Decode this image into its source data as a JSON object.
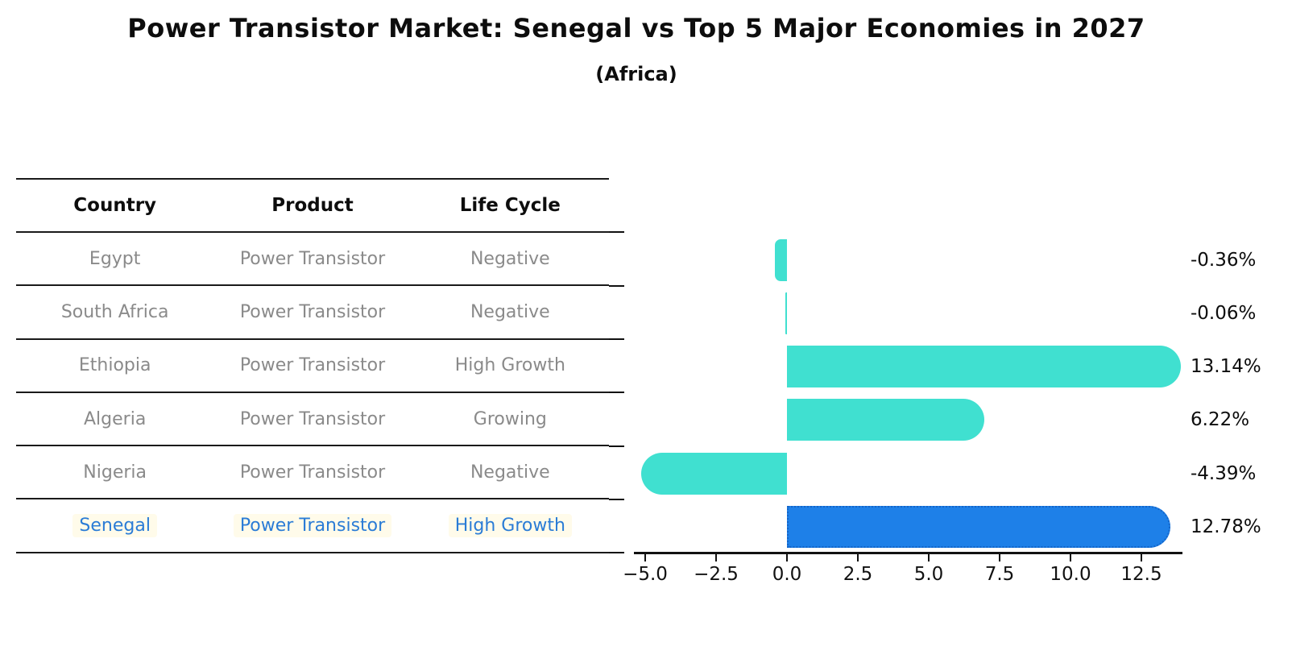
{
  "title": "Power Transistor Market: Senegal vs Top 5 Major Economies in 2027",
  "subtitle": "(Africa)",
  "table": {
    "headers": [
      "Country",
      "Product",
      "Life Cycle"
    ],
    "rows": [
      {
        "country": "Egypt",
        "product": "Power Transistor",
        "life_cycle": "Negative"
      },
      {
        "country": "South Africa",
        "product": "Power Transistor",
        "life_cycle": "Negative"
      },
      {
        "country": "Ethiopia",
        "product": "Power Transistor",
        "life_cycle": "High Growth"
      },
      {
        "country": "Algeria",
        "product": "Power Transistor",
        "life_cycle": "Growing"
      },
      {
        "country": "Nigeria",
        "product": "Power Transistor",
        "life_cycle": "Negative"
      },
      {
        "country": "Senegal",
        "product": "Power Transistor",
        "life_cycle": "High Growth"
      }
    ],
    "highlight_row": "Senegal"
  },
  "chart_data": {
    "type": "bar",
    "orientation": "horizontal",
    "categories": [
      "Egypt",
      "South Africa",
      "Ethiopia",
      "Algeria",
      "Nigeria",
      "Senegal"
    ],
    "values": [
      -0.36,
      -0.06,
      13.14,
      6.22,
      -4.39,
      12.78
    ],
    "value_labels": [
      "-0.36%",
      "-0.06%",
      "13.14%",
      "6.22%",
      "-4.39%",
      "12.78%"
    ],
    "xticks": [
      -5.0,
      -2.5,
      0.0,
      2.5,
      5.0,
      7.5,
      10.0,
      12.5
    ],
    "xtick_labels": [
      "−5.0",
      "−2.5",
      "0.0",
      "2.5",
      "5.0",
      "7.5",
      "10.0",
      "12.5"
    ],
    "xlim": [
      -5.4,
      14.0
    ],
    "grid": false,
    "legend": false,
    "highlight_index": 5,
    "colors": {
      "bar": "#40E0D0",
      "highlight_bar": "#1E80E8",
      "highlight_edge": "#1465C8",
      "highlight_text": "#2A7CD6",
      "row_text": "#8A8A8A",
      "axis": "#111111"
    }
  }
}
